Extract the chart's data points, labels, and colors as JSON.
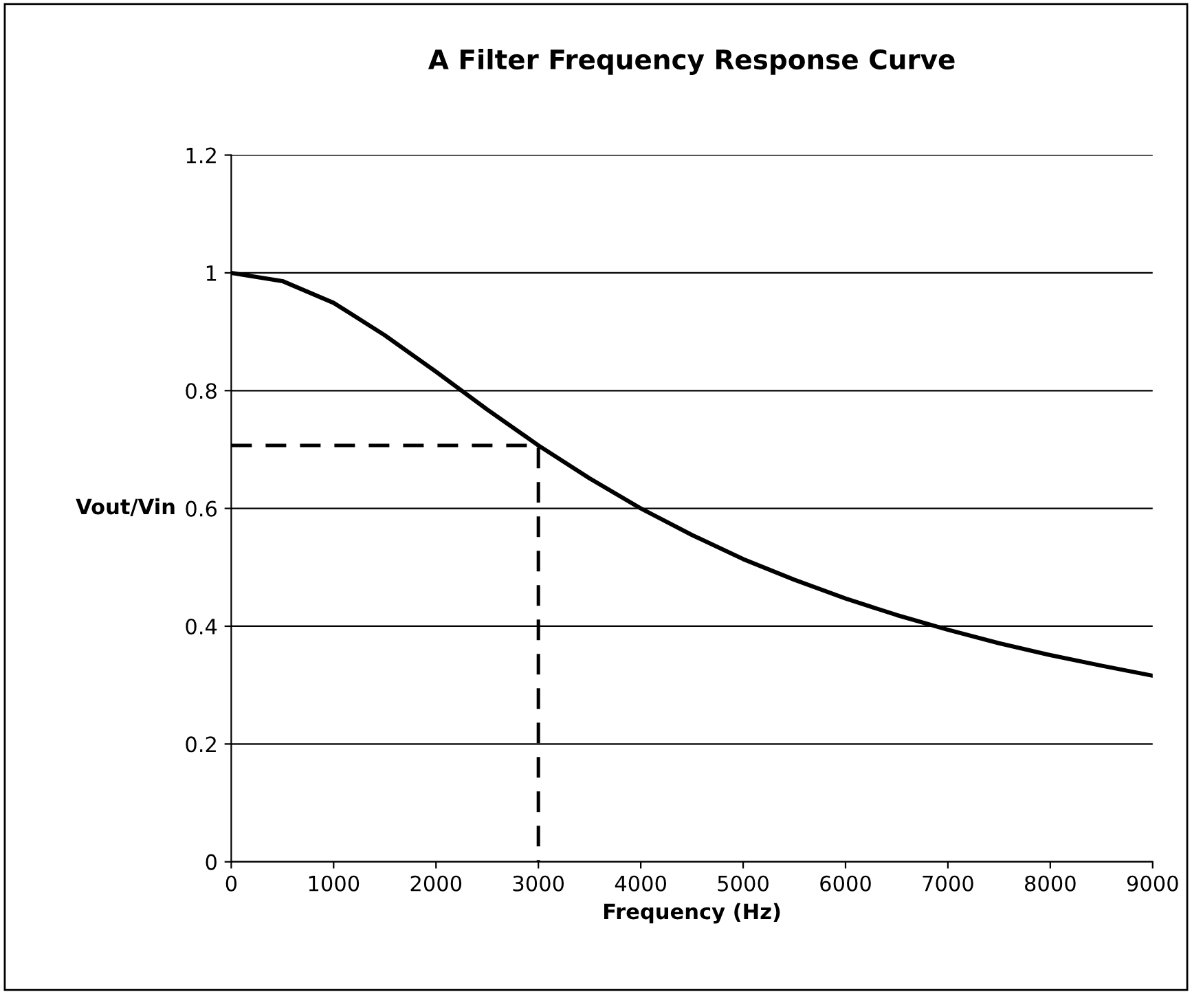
{
  "chart_data": {
    "type": "line",
    "title": "A Filter Frequency Response Curve",
    "xlabel": "Frequency (Hz)",
    "ylabel": "Vout/Vin",
    "xlim": [
      0,
      9000
    ],
    "xticks": [
      0,
      1000,
      2000,
      3000,
      4000,
      5000,
      6000,
      7000,
      8000,
      9000
    ],
    "ylim": [
      0,
      1.2
    ],
    "yticks": [
      0,
      0.2,
      0.4,
      0.6,
      0.8,
      1,
      1.2
    ],
    "grid": "y",
    "marker": "none",
    "series": [
      {
        "color": "#000000",
        "line_style": "solid",
        "x": [
          0,
          500,
          1000,
          1500,
          2000,
          2500,
          3000,
          3500,
          4000,
          4500,
          5000,
          5500,
          6000,
          6500,
          7000,
          7500,
          8000,
          8500,
          9000
        ],
        "values": [
          1,
          0.986,
          0.949,
          0.894,
          0.832,
          0.768,
          0.707,
          0.651,
          0.6,
          0.555,
          0.514,
          0.479,
          0.447,
          0.419,
          0.394,
          0.371,
          0.351,
          0.333,
          0.316
        ]
      },
      {
        "color": "#000000",
        "line_style": "dashed",
        "x": [
          0,
          3000,
          3000
        ],
        "values": [
          0.707,
          0.707,
          0
        ]
      }
    ]
  }
}
